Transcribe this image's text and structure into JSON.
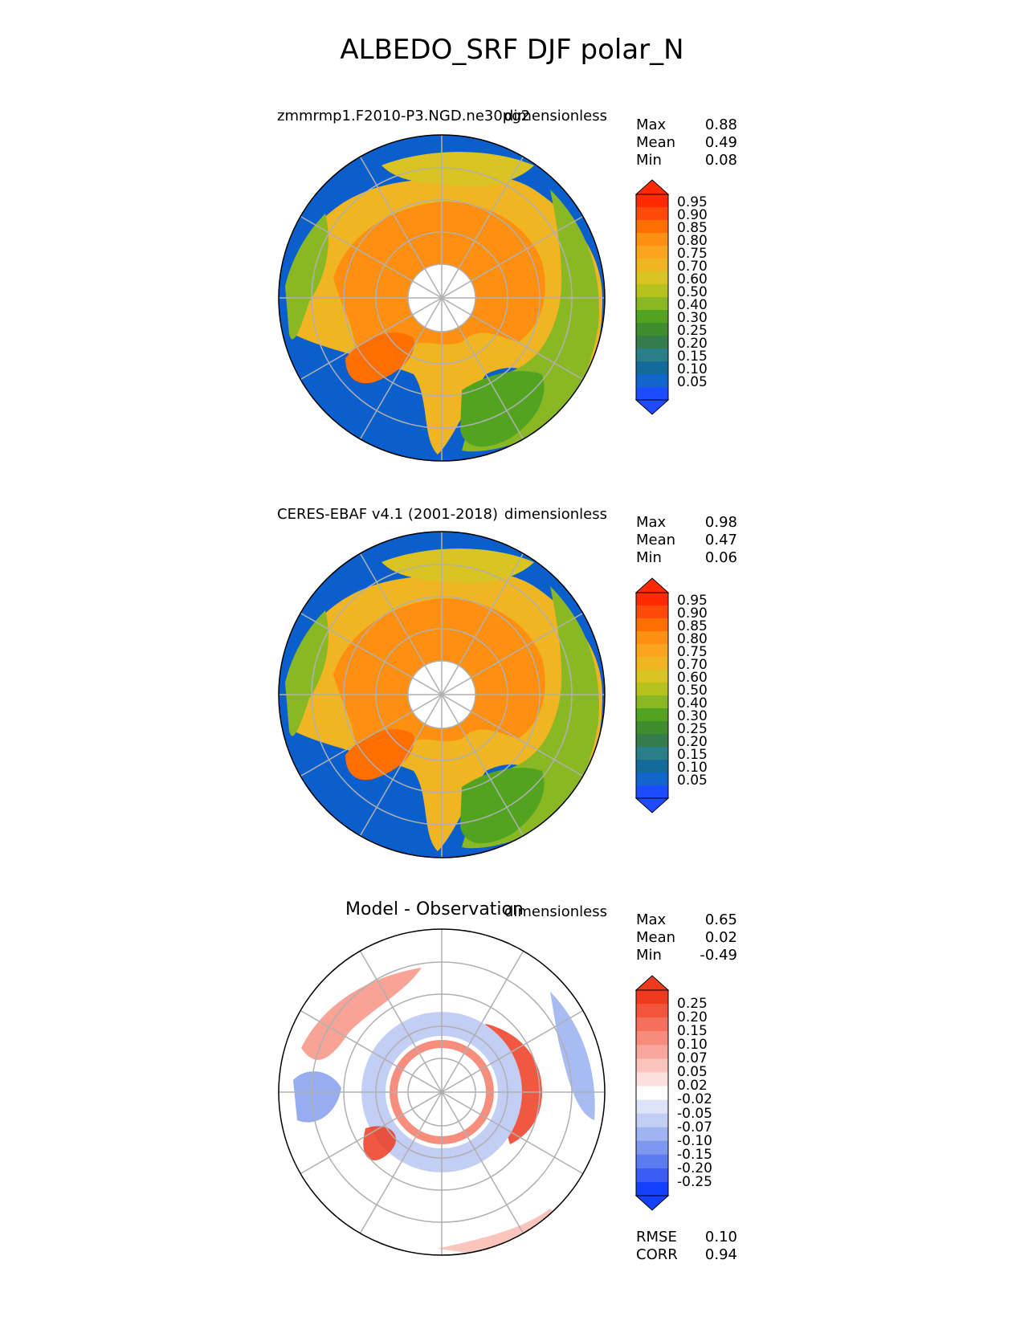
{
  "figure_title": "ALBEDO_SRF DJF polar_N",
  "colors": {
    "ocean": "#0a5fcc",
    "abs_levels": [
      "#1d4cff",
      "#1166cc",
      "#146a9a",
      "#2a7e88",
      "#357c4c",
      "#3f8c2e",
      "#52a420",
      "#8ab824",
      "#b7c21e",
      "#d9c423",
      "#f0b523",
      "#f9a51e",
      "#ff8f10",
      "#ff6f00",
      "#ff4a0a",
      "#ff2a00"
    ],
    "diff_levels": [
      "#1440ff",
      "#3a5df5",
      "#5b7cf0",
      "#7d98ee",
      "#a0b4f2",
      "#c3cef5",
      "#dde3f8",
      "#ffffff",
      "#fde0dc",
      "#fbc4bc",
      "#f9a79c",
      "#f78b7c",
      "#f5705c",
      "#f2553c",
      "#ee3b20"
    ]
  },
  "chart_data": [
    {
      "type": "heatmap",
      "title": "zmmrmp1.F2010-P3.NGD.ne30pg2",
      "units": "dimensionless",
      "stats": {
        "max_label": "Max",
        "max": "0.88",
        "mean_label": "Mean",
        "mean": "0.49",
        "min_label": "Min",
        "min": "0.08"
      },
      "colorbar_ticks": [
        "0.95",
        "0.90",
        "0.85",
        "0.80",
        "0.75",
        "0.70",
        "0.60",
        "0.50",
        "0.40",
        "0.30",
        "0.25",
        "0.20",
        "0.15",
        "0.10",
        "0.05"
      ]
    },
    {
      "type": "heatmap",
      "title": "CERES-EBAF v4.1 (2001-2018)",
      "units": "dimensionless",
      "stats": {
        "max_label": "Max",
        "max": "0.98",
        "mean_label": "Mean",
        "mean": "0.47",
        "min_label": "Min",
        "min": "0.06"
      },
      "colorbar_ticks": [
        "0.95",
        "0.90",
        "0.85",
        "0.80",
        "0.75",
        "0.70",
        "0.60",
        "0.50",
        "0.40",
        "0.30",
        "0.25",
        "0.20",
        "0.15",
        "0.10",
        "0.05"
      ]
    },
    {
      "type": "heatmap",
      "title": "Model - Observation",
      "units": "dimensionless",
      "stats": {
        "max_label": "Max",
        "max": "0.65",
        "mean_label": "Mean",
        "mean": "0.02",
        "min_label": "Min",
        "min": "-0.49"
      },
      "colorbar_ticks": [
        "0.25",
        "0.20",
        "0.15",
        "0.10",
        "0.07",
        "0.05",
        "0.02",
        "-0.02",
        "-0.05",
        "-0.07",
        "-0.10",
        "-0.15",
        "-0.20",
        "-0.25"
      ],
      "metrics": {
        "rmse_label": "RMSE",
        "rmse": "0.10",
        "corr_label": "CORR",
        "corr": "0.94"
      }
    }
  ]
}
